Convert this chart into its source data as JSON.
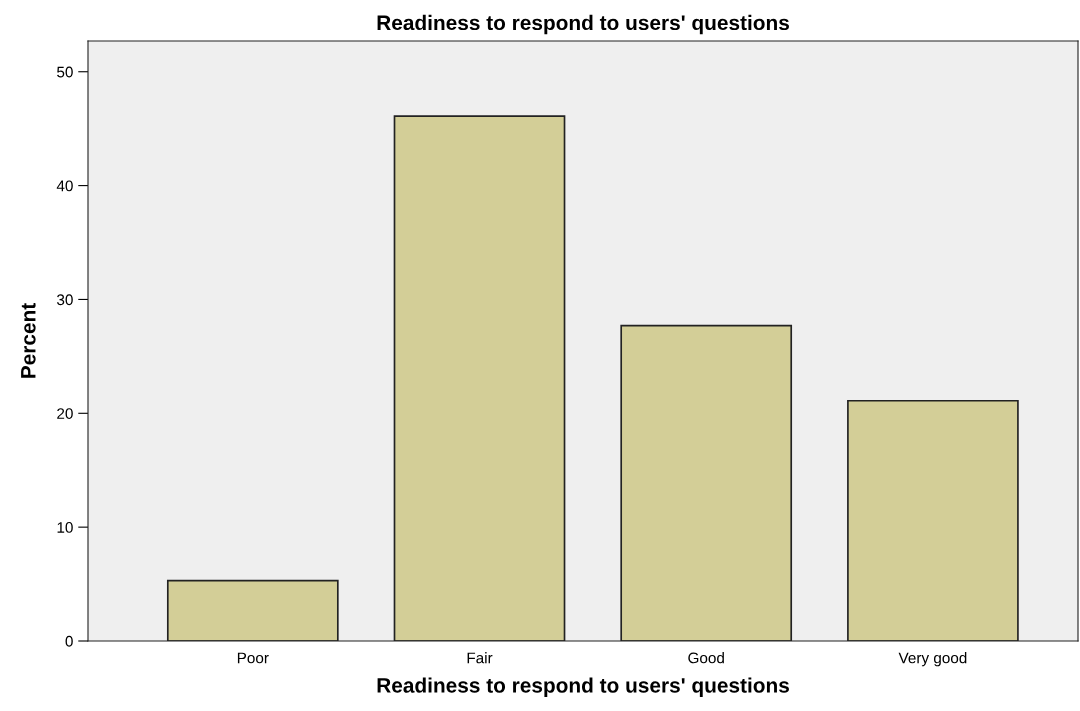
{
  "chart_data": {
    "type": "bar",
    "title": "Readiness to respond to users' questions",
    "xlabel": "Readiness to respond to users' questions",
    "ylabel": "Percent",
    "categories": [
      "Poor",
      "Fair",
      "Good",
      "Very good"
    ],
    "values": [
      5.3,
      46.1,
      27.7,
      21.1
    ],
    "color": "#d3ce97",
    "ylim": [
      0,
      52.7
    ],
    "yticks": [
      0,
      10,
      20,
      30,
      40,
      50
    ],
    "grid": false,
    "legend": false
  }
}
